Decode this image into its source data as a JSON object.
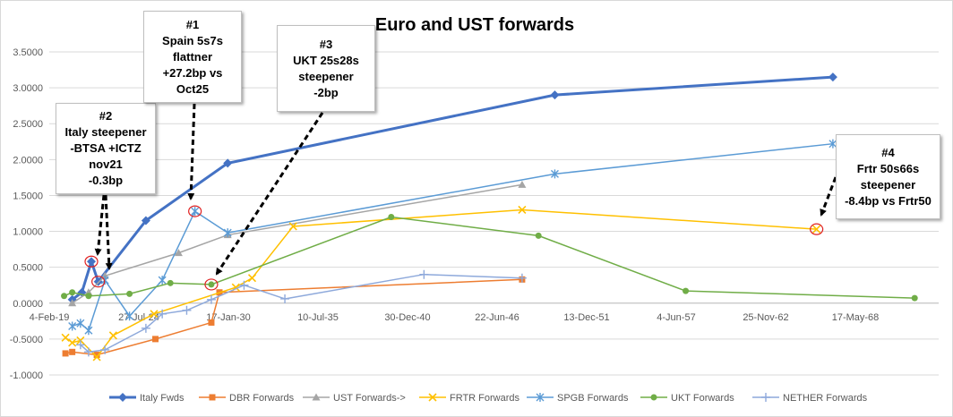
{
  "chart_data": {
    "type": "line",
    "title": "Euro and UST forwards",
    "xlabel": "",
    "ylabel": "",
    "ylim": [
      -1.0,
      3.5
    ],
    "y_ticks": [
      "3.5000",
      "3.0000",
      "2.5000",
      "2.0000",
      "1.5000",
      "1.0000",
      "0.5000",
      "0.0000",
      "-0.5000",
      "-1.0000"
    ],
    "x_ticks": [
      "4-Feb-19",
      "27-Jul-24",
      "17-Jan-30",
      "10-Jul-35",
      "30-Dec-40",
      "22-Jun-46",
      "13-Dec-51",
      "4-Jun-57",
      "25-Nov-62",
      "17-May-68"
    ],
    "grid": "horizontal",
    "legend": "bottom",
    "series": [
      {
        "name": "Italy Fwds",
        "color": "#4472c4",
        "marker": "diamond",
        "width": 3,
        "x": [
          "2020-07-01",
          "2021-02-01",
          "2021-09-01",
          "2022-02-01",
          "2025-01-01",
          "2030-01-01",
          "2050-01-01",
          "2067-01-01"
        ],
        "y": [
          0.05,
          0.15,
          0.58,
          0.3,
          1.15,
          1.95,
          2.9,
          3.15
        ]
      },
      {
        "name": "DBR Forwards",
        "color": "#ed7d31",
        "marker": "square",
        "width": 1.5,
        "x": [
          "2020-02-01",
          "2020-07-01",
          "2022-01-01",
          "2025-08-01",
          "2029-01-01",
          "2029-07-01",
          "2048-01-01"
        ],
        "y": [
          -0.7,
          -0.68,
          -0.72,
          -0.5,
          -0.27,
          0.15,
          0.33
        ]
      },
      {
        "name": "UST Forwards->",
        "color": "#a5a5a5",
        "marker": "triangle",
        "width": 1.5,
        "x": [
          "2020-07-01",
          "2021-07-01",
          "2022-07-01",
          "2027-01-01",
          "2030-01-01",
          "2048-01-01"
        ],
        "y": [
          0.0,
          0.15,
          0.38,
          0.7,
          0.95,
          1.65
        ]
      },
      {
        "name": "FRTR Forwards",
        "color": "#ffc000",
        "marker": "cross",
        "width": 1.5,
        "x": [
          "2020-02-01",
          "2020-07-01",
          "2021-01-01",
          "2022-01-01",
          "2023-01-01",
          "2025-07-01",
          "2030-07-01",
          "2031-07-01",
          "2034-01-01",
          "2048-01-01",
          "2066-01-01"
        ],
        "y": [
          -0.48,
          -0.55,
          -0.52,
          -0.75,
          -0.45,
          -0.15,
          0.22,
          0.35,
          1.07,
          1.3,
          1.03
        ]
      },
      {
        "name": "SPGB Forwards",
        "color": "#5b9bd5",
        "marker": "star",
        "width": 1.5,
        "x": [
          "2020-07-01",
          "2021-01-01",
          "2021-07-01",
          "2022-07-01",
          "2024-01-01",
          "2026-01-01",
          "2028-01-01",
          "2030-01-01",
          "2050-01-01",
          "2067-01-01"
        ],
        "y": [
          -0.32,
          -0.28,
          -0.38,
          0.32,
          -0.18,
          0.32,
          1.28,
          0.98,
          1.8,
          2.22
        ]
      },
      {
        "name": "UKT Forwards",
        "color": "#70ad47",
        "marker": "circle",
        "width": 1.5,
        "x": [
          "2020-01-01",
          "2020-07-01",
          "2021-07-01",
          "2024-01-01",
          "2026-07-01",
          "2029-01-01",
          "2040-01-01",
          "2049-01-01",
          "2058-01-01",
          "2072-01-01"
        ],
        "y": [
          0.1,
          0.15,
          0.1,
          0.13,
          0.28,
          0.26,
          1.2,
          0.94,
          0.17,
          0.07
        ]
      },
      {
        "name": "NETHER Forwards",
        "color": "#8ea9db",
        "marker": "plus",
        "width": 1.5,
        "x": [
          "2021-01-01",
          "2021-07-01",
          "2022-07-01",
          "2025-01-01",
          "2026-01-01",
          "2027-07-01",
          "2029-01-01",
          "2031-01-01",
          "2033-07-01",
          "2042-01-01",
          "2048-01-01"
        ],
        "y": [
          -0.58,
          -0.68,
          -0.65,
          -0.35,
          -0.15,
          -0.1,
          0.05,
          0.25,
          0.06,
          0.4,
          0.35
        ]
      }
    ],
    "highlights": [
      {
        "series": "Italy Fwds",
        "x": "2021-09-01",
        "y": 0.58
      },
      {
        "series": "Italy Fwds",
        "x": "2022-02-01",
        "y": 0.3
      },
      {
        "series": "SPGB Forwards",
        "x": "2028-01-01",
        "y": 1.28
      },
      {
        "series": "UKT Forwards",
        "x": "2029-01-01",
        "y": 0.26
      },
      {
        "series": "FRTR Forwards",
        "x": "2066-01-01",
        "y": 1.03
      }
    ]
  },
  "callouts": [
    {
      "id": "c2",
      "lines": [
        "#2",
        "Italy steepener",
        "-BTSA +ICTZ",
        "nov21",
        "-0.3bp"
      ]
    },
    {
      "id": "c1",
      "lines": [
        "#1",
        "Spain 5s7s",
        "flattner",
        "+27.2bp vs",
        "Oct25"
      ]
    },
    {
      "id": "c3",
      "lines": [
        "#3",
        "UKT 25s28s",
        "steepener",
        "-2bp"
      ]
    },
    {
      "id": "c4",
      "lines": [
        "#4",
        "Frtr 50s66s",
        "steepener",
        "-8.4bp vs Frtr50"
      ]
    }
  ]
}
